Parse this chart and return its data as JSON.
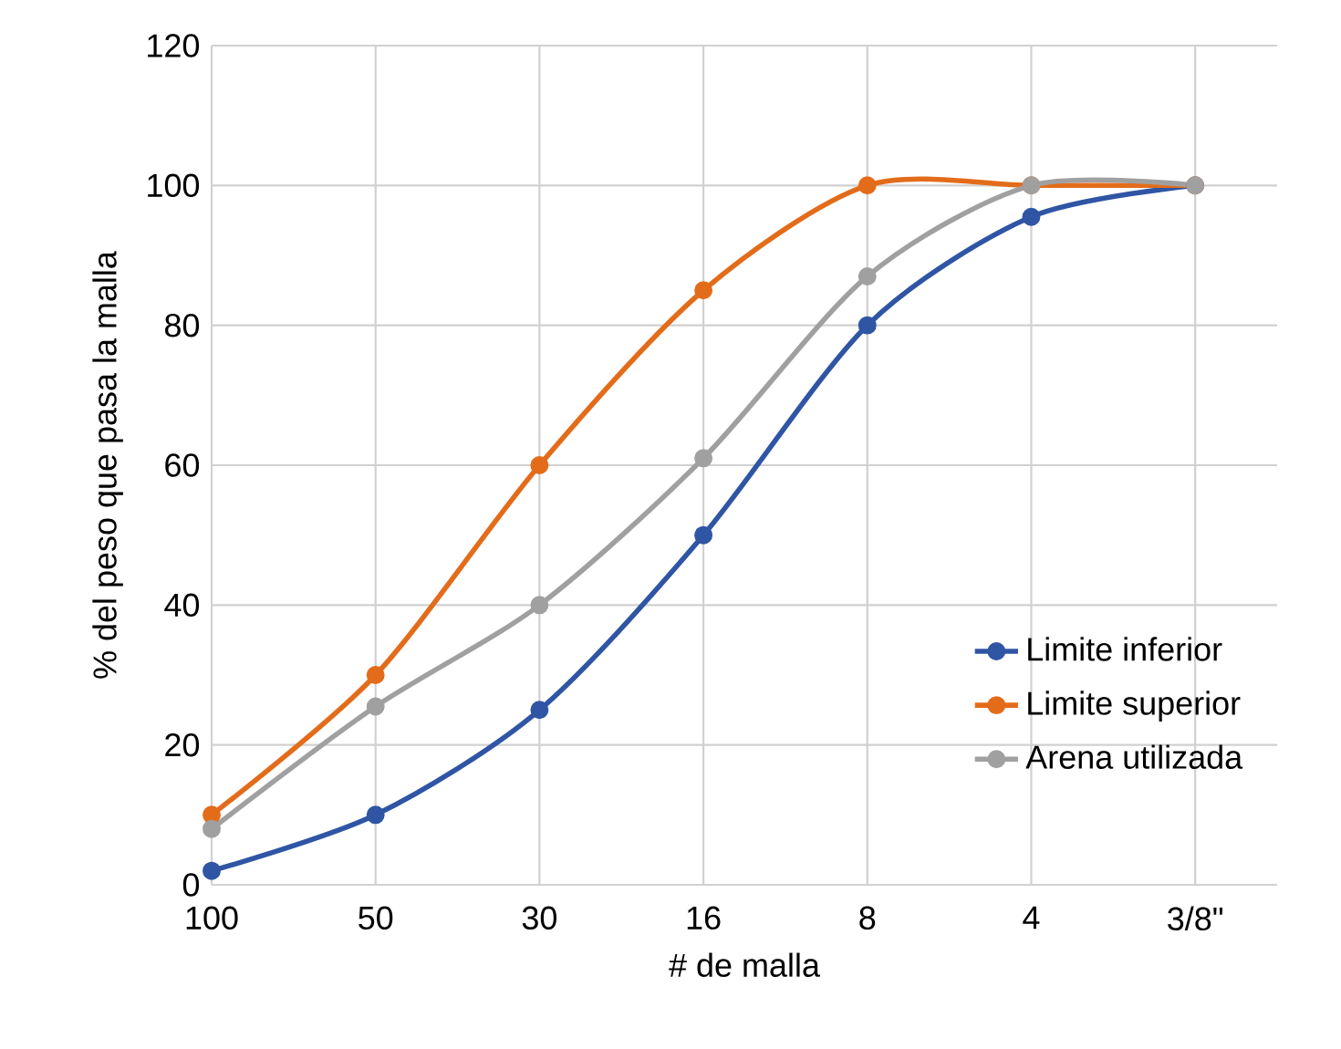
{
  "chart_data": {
    "type": "line",
    "xlabel": "# de malla",
    "ylabel": "% del peso que pasa la malla",
    "categories": [
      "100",
      "50",
      "30",
      "16",
      "8",
      "4",
      "3/8\""
    ],
    "series": [
      {
        "name": "Limite inferior",
        "color": "#2f55a4",
        "values": [
          2,
          10,
          25,
          50,
          80,
          95.5,
          100
        ]
      },
      {
        "name": "Limite superior",
        "color": "#e36c1a",
        "values": [
          10,
          30,
          60,
          85,
          100,
          100,
          100
        ]
      },
      {
        "name": "Arena utilizada",
        "color": "#a0a0a0",
        "values": [
          8,
          25.5,
          40,
          61,
          87,
          100,
          100
        ]
      }
    ],
    "ylim": [
      0,
      120
    ],
    "yticks": [
      0,
      20,
      40,
      60,
      80,
      100,
      120
    ],
    "grid": true,
    "legend": "bottom right",
    "marker": "circle",
    "line_style": "solid"
  }
}
